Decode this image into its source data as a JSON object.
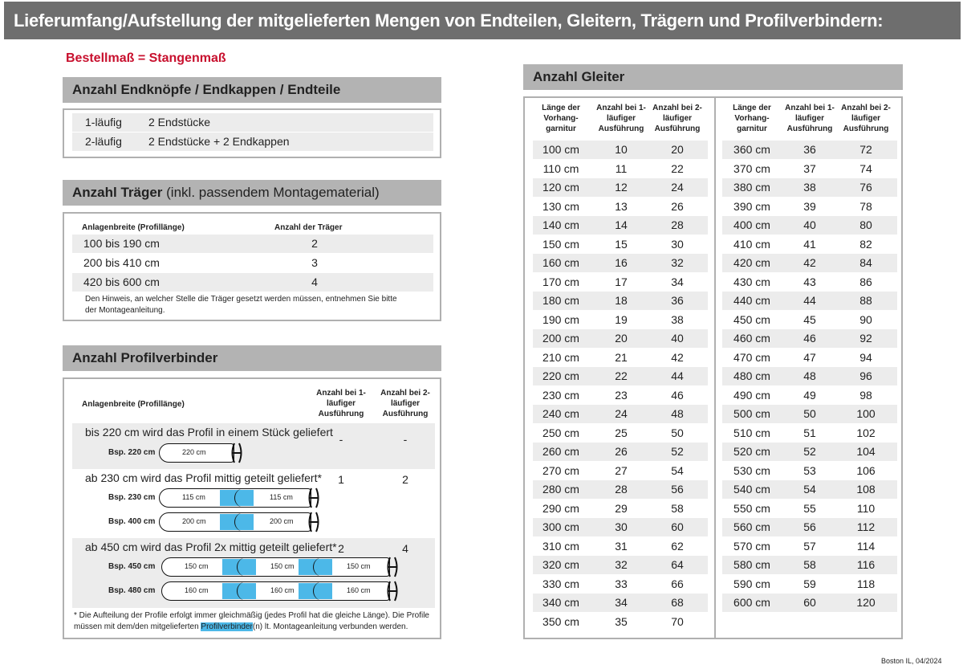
{
  "title": "Lieferumfang/Aufstellung der mitgelieferten Mengen von Endteilen, Gleitern, Trägern und Profilverbindern:",
  "subtitle": "Bestellmaß = Stangenmaß",
  "colors": {
    "header": "#6e6e6e",
    "section": "#b3b3b3",
    "accent_red": "#c8102e",
    "connector_blue": "#4cb8e8"
  },
  "endteile": {
    "heading": "Anzahl Endknöpfe / Endkappen / Endteile",
    "rows": [
      [
        "1-läufig",
        "2 Endstücke"
      ],
      [
        "2-läufig",
        "2 Endstücke + 2 Endkappen"
      ]
    ]
  },
  "traeger": {
    "heading_bold": "Anzahl Träger",
    "heading_normal": " (inkl. passendem Montagematerial)",
    "col1": "Anlagenbreite (Profillänge)",
    "col2": "Anzahl der Träger",
    "rows": [
      [
        "100 bis 190 cm",
        "2"
      ],
      [
        "200 bis 410 cm",
        "3"
      ],
      [
        "420 bis 600 cm",
        "4"
      ]
    ],
    "note": "Den Hinweis, an welcher Stelle die Träger gesetzt werden müssen, entnehmen Sie bitte der Montageanleitung."
  },
  "profilverbinder": {
    "heading": "Anzahl Profilverbinder",
    "col1": "Anlagenbreite (Profillänge)",
    "col2": "Anzahl bei 1-läufiger Ausführung",
    "col3": "Anzahl bei 2-läufiger Ausführung",
    "groups": [
      {
        "text": "bis 220 cm wird das Profil in einem Stück geliefert",
        "v1": "-",
        "v2": "-",
        "examples": [
          {
            "label": "Bsp. 220 cm",
            "segments": [
              "220 cm"
            ]
          }
        ]
      },
      {
        "text": "ab 230 cm wird das Profil mittig geteilt geliefert*",
        "v1": "1",
        "v2": "2",
        "examples": [
          {
            "label": "Bsp. 230 cm",
            "segments": [
              "115 cm",
              "115 cm"
            ]
          },
          {
            "label": "Bsp. 400 cm",
            "segments": [
              "200 cm",
              "200 cm"
            ]
          }
        ]
      },
      {
        "text": "ab 450 cm wird das Profil 2x mittig geteilt geliefert*",
        "v1": "2",
        "v2": "4",
        "examples": [
          {
            "label": "Bsp. 450 cm",
            "segments": [
              "150 cm",
              "150 cm",
              "150 cm"
            ]
          },
          {
            "label": "Bsp. 480 cm",
            "segments": [
              "160 cm",
              "160 cm",
              "160 cm"
            ]
          }
        ]
      }
    ],
    "note_a": "* Die Aufteilung der Profile erfolgt immer gleichmäßig (jedes Profil hat die gleiche Länge). Die Profile",
    "note_b": "müssen mit dem/den mitgelieferten ",
    "note_highlight": "Profilverbinder",
    "note_c": "(n) lt. Montageanleitung verbunden werden."
  },
  "gleiter": {
    "heading": "Anzahl Gleiter",
    "headers": [
      "Länge der Vorhang-garnitur",
      "Anzahl bei 1-läufiger Ausführung",
      "Anzahl bei 2-läufiger Ausführung"
    ],
    "left": [
      [
        "100 cm",
        "10",
        "20"
      ],
      [
        "110 cm",
        "11",
        "22"
      ],
      [
        "120 cm",
        "12",
        "24"
      ],
      [
        "130 cm",
        "13",
        "26"
      ],
      [
        "140 cm",
        "14",
        "28"
      ],
      [
        "150 cm",
        "15",
        "30"
      ],
      [
        "160 cm",
        "16",
        "32"
      ],
      [
        "170 cm",
        "17",
        "34"
      ],
      [
        "180 cm",
        "18",
        "36"
      ],
      [
        "190 cm",
        "19",
        "38"
      ],
      [
        "200 cm",
        "20",
        "40"
      ],
      [
        "210 cm",
        "21",
        "42"
      ],
      [
        "220 cm",
        "22",
        "44"
      ],
      [
        "230 cm",
        "23",
        "46"
      ],
      [
        "240 cm",
        "24",
        "48"
      ],
      [
        "250 cm",
        "25",
        "50"
      ],
      [
        "260 cm",
        "26",
        "52"
      ],
      [
        "270 cm",
        "27",
        "54"
      ],
      [
        "280 cm",
        "28",
        "56"
      ],
      [
        "290 cm",
        "29",
        "58"
      ],
      [
        "300 cm",
        "30",
        "60"
      ],
      [
        "310 cm",
        "31",
        "62"
      ],
      [
        "320 cm",
        "32",
        "64"
      ],
      [
        "330 cm",
        "33",
        "66"
      ],
      [
        "340 cm",
        "34",
        "68"
      ],
      [
        "350 cm",
        "35",
        "70"
      ]
    ],
    "right": [
      [
        "360 cm",
        "36",
        "72"
      ],
      [
        "370 cm",
        "37",
        "74"
      ],
      [
        "380 cm",
        "38",
        "76"
      ],
      [
        "390 cm",
        "39",
        "78"
      ],
      [
        "400 cm",
        "40",
        "80"
      ],
      [
        "410 cm",
        "41",
        "82"
      ],
      [
        "420 cm",
        "42",
        "84"
      ],
      [
        "430 cm",
        "43",
        "86"
      ],
      [
        "440 cm",
        "44",
        "88"
      ],
      [
        "450 cm",
        "45",
        "90"
      ],
      [
        "460 cm",
        "46",
        "92"
      ],
      [
        "470 cm",
        "47",
        "94"
      ],
      [
        "480 cm",
        "48",
        "96"
      ],
      [
        "490 cm",
        "49",
        "98"
      ],
      [
        "500 cm",
        "50",
        "100"
      ],
      [
        "510 cm",
        "51",
        "102"
      ],
      [
        "520 cm",
        "52",
        "104"
      ],
      [
        "530 cm",
        "53",
        "106"
      ],
      [
        "540 cm",
        "54",
        "108"
      ],
      [
        "550 cm",
        "55",
        "110"
      ],
      [
        "560 cm",
        "56",
        "112"
      ],
      [
        "570 cm",
        "57",
        "114"
      ],
      [
        "580 cm",
        "58",
        "116"
      ],
      [
        "590 cm",
        "59",
        "118"
      ],
      [
        "600 cm",
        "60",
        "120"
      ]
    ]
  },
  "footer": "Boston IL, 04/2024"
}
